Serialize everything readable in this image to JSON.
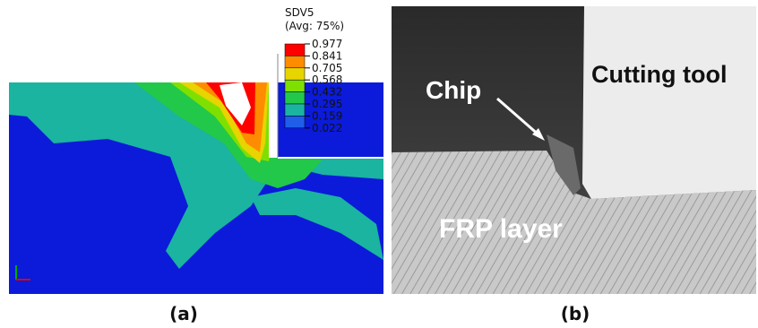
{
  "panel_a": {
    "legend": {
      "title": "SDV5",
      "subtitle": "(Avg: 75%)",
      "labels": [
        "0.977",
        "0.841",
        "0.705",
        "0.568",
        "0.432",
        "0.295",
        "0.159",
        "0.022"
      ],
      "band_colors": [
        "#ff0000",
        "#ff8c00",
        "#e8d400",
        "#7fe000",
        "#22c84a",
        "#1ab4a0",
        "#1f5ee8"
      ]
    },
    "caption": "(a)"
  },
  "panel_b": {
    "chip": "Chip",
    "tool": "Cutting tool",
    "layer": "FRP layer",
    "caption": "(b)"
  }
}
